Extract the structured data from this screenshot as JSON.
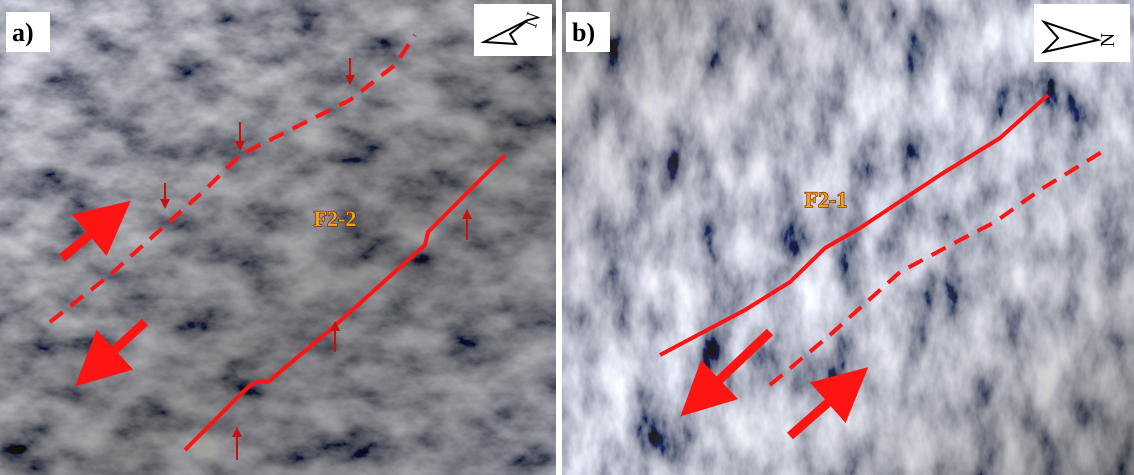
{
  "panels": [
    {
      "label": "a)",
      "fault": "F2-2",
      "north": "N"
    },
    {
      "label": "b)",
      "fault": "F2-1",
      "north": "N"
    }
  ]
}
